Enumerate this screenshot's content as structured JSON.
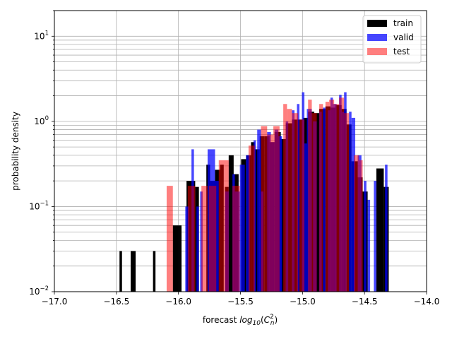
{
  "chart_data": {
    "type": "bar",
    "subtype": "histogram",
    "title": "",
    "xlabel": "forecast log10(C_n^2)",
    "xlabel_parts": {
      "prefix": "forecast ",
      "func": "log",
      "sub": "10",
      "open": "(",
      "var": "C",
      "sup": "2",
      "varsub": "n",
      "close": ")"
    },
    "ylabel": "probability density",
    "xlim": [
      -17.0,
      -14.0
    ],
    "ylim": [
      0.01,
      20
    ],
    "yscale": "log",
    "grid": true,
    "legend_position": "top-right",
    "xticks": [
      -17.0,
      -16.5,
      -16.0,
      -15.5,
      -15.0,
      -14.5,
      -14.0
    ],
    "xtick_labels": [
      "−17.0",
      "−16.5",
      "−16.0",
      "−15.5",
      "−15.0",
      "−14.5",
      "−14.0"
    ],
    "yticks": [
      0.01,
      0.1,
      1,
      10
    ],
    "ytick_labels": [
      {
        "base": "10",
        "exp": "−2"
      },
      {
        "base": "10",
        "exp": "−1"
      },
      {
        "base": "10",
        "exp": "0"
      },
      {
        "base": "10",
        "exp": "1"
      }
    ],
    "series": [
      {
        "name": "train",
        "color": "#000000",
        "opacity": 1.0,
        "bars": [
          [
            -16.475,
            -16.455,
            0.03
          ],
          [
            -16.385,
            -16.345,
            0.03
          ],
          [
            -16.205,
            -16.185,
            0.03
          ],
          [
            -16.045,
            -15.995,
            0.06
          ],
          [
            -15.995,
            -15.975,
            0.06
          ],
          [
            -15.935,
            -15.865,
            0.2
          ],
          [
            -15.865,
            -15.835,
            0.17
          ],
          [
            -15.775,
            -15.745,
            0.31
          ],
          [
            -15.745,
            -15.705,
            0.2
          ],
          [
            -15.705,
            -15.665,
            0.27
          ],
          [
            -15.665,
            -15.635,
            0.31
          ],
          [
            -15.625,
            -15.595,
            0.17
          ],
          [
            -15.595,
            -15.555,
            0.4
          ],
          [
            -15.555,
            -15.515,
            0.24
          ],
          [
            -15.495,
            -15.455,
            0.36
          ],
          [
            -15.455,
            -15.415,
            0.4
          ],
          [
            -15.415,
            -15.385,
            0.57
          ],
          [
            -15.385,
            -15.345,
            0.47
          ],
          [
            -15.345,
            -15.305,
            0.67
          ],
          [
            -15.305,
            -15.265,
            0.67
          ],
          [
            -15.265,
            -15.225,
            0.57
          ],
          [
            -15.225,
            -15.175,
            0.75
          ],
          [
            -15.175,
            -15.135,
            0.62
          ],
          [
            -15.135,
            -15.085,
            0.95
          ],
          [
            -15.085,
            -15.045,
            1.05
          ],
          [
            -15.045,
            -14.995,
            1.05
          ],
          [
            -14.995,
            -14.955,
            1.1
          ],
          [
            -14.955,
            -14.905,
            1.3
          ],
          [
            -14.905,
            -14.865,
            1.25
          ],
          [
            -14.865,
            -14.815,
            1.4
          ],
          [
            -14.815,
            -14.775,
            1.5
          ],
          [
            -14.775,
            -14.735,
            1.45
          ],
          [
            -14.735,
            -14.685,
            1.55
          ],
          [
            -14.685,
            -14.645,
            1.4
          ],
          [
            -14.645,
            -14.605,
            0.92
          ],
          [
            -14.605,
            -14.555,
            0.34
          ],
          [
            -14.555,
            -14.515,
            0.22
          ],
          [
            -14.515,
            -14.475,
            0.15
          ],
          [
            -14.405,
            -14.345,
            0.28
          ],
          [
            -14.345,
            -14.305,
            0.17
          ]
        ]
      },
      {
        "name": "valid",
        "color": "#0000ff",
        "opacity": 0.72,
        "bars": [
          [
            -15.945,
            -15.915,
            0.1
          ],
          [
            -15.895,
            -15.875,
            0.47
          ],
          [
            -15.855,
            -15.835,
            0.1
          ],
          [
            -15.825,
            -15.805,
            0.15
          ],
          [
            -15.765,
            -15.705,
            0.47
          ],
          [
            -15.705,
            -15.675,
            0.2
          ],
          [
            -15.625,
            -15.595,
            0.15
          ],
          [
            -15.565,
            -15.545,
            0.24
          ],
          [
            -15.545,
            -15.505,
            0.15
          ],
          [
            -15.505,
            -15.465,
            0.31
          ],
          [
            -15.455,
            -15.425,
            0.4
          ],
          [
            -15.395,
            -15.375,
            0.6
          ],
          [
            -15.365,
            -15.335,
            0.8
          ],
          [
            -15.335,
            -15.315,
            0.15
          ],
          [
            -15.285,
            -15.255,
            0.75
          ],
          [
            -15.255,
            -15.225,
            0.57
          ],
          [
            -15.225,
            -15.195,
            0.8
          ],
          [
            -15.195,
            -15.165,
            0.67
          ],
          [
            -15.135,
            -15.115,
            1.0
          ],
          [
            -15.085,
            -15.065,
            1.35
          ],
          [
            -15.045,
            -15.025,
            1.6
          ],
          [
            -15.005,
            -14.985,
            2.2
          ],
          [
            -14.985,
            -14.965,
            0.55
          ],
          [
            -14.965,
            -14.925,
            1.4
          ],
          [
            -14.915,
            -14.885,
            1.0
          ],
          [
            -14.865,
            -14.845,
            1.3
          ],
          [
            -14.835,
            -14.815,
            1.45
          ],
          [
            -14.795,
            -14.775,
            1.35
          ],
          [
            -14.775,
            -14.755,
            1.9
          ],
          [
            -14.755,
            -14.725,
            1.6
          ],
          [
            -14.705,
            -14.685,
            2.05
          ],
          [
            -14.685,
            -14.665,
            1.3
          ],
          [
            -14.665,
            -14.645,
            2.2
          ],
          [
            -14.625,
            -14.605,
            1.3
          ],
          [
            -14.605,
            -14.575,
            1.1
          ],
          [
            -14.555,
            -14.525,
            0.4
          ],
          [
            -14.505,
            -14.485,
            0.2
          ],
          [
            -14.475,
            -14.455,
            0.12
          ],
          [
            -14.425,
            -14.405,
            0.2
          ],
          [
            -14.335,
            -14.315,
            0.31
          ]
        ]
      },
      {
        "name": "test",
        "color": "#ff0000",
        "opacity": 0.5,
        "bars": [
          [
            -16.095,
            -16.045,
            0.175
          ],
          [
            -15.925,
            -15.865,
            0.175
          ],
          [
            -15.815,
            -15.765,
            0.175
          ],
          [
            -15.755,
            -15.695,
            0.175
          ],
          [
            -15.675,
            -15.595,
            0.35
          ],
          [
            -15.565,
            -15.505,
            0.175
          ],
          [
            -15.435,
            -15.385,
            0.52
          ],
          [
            -15.335,
            -15.285,
            0.88
          ],
          [
            -15.285,
            -15.235,
            0.7
          ],
          [
            -15.235,
            -15.185,
            0.88
          ],
          [
            -15.155,
            -15.125,
            1.6
          ],
          [
            -15.125,
            -15.085,
            1.4
          ],
          [
            -15.085,
            -15.035,
            1.25
          ],
          [
            -15.025,
            -14.985,
            1.05
          ],
          [
            -14.955,
            -14.925,
            1.8
          ],
          [
            -14.925,
            -14.885,
            1.25
          ],
          [
            -14.865,
            -14.835,
            1.6
          ],
          [
            -14.815,
            -14.785,
            1.7
          ],
          [
            -14.785,
            -14.745,
            1.8
          ],
          [
            -14.745,
            -14.705,
            1.6
          ],
          [
            -14.705,
            -14.665,
            1.9
          ],
          [
            -14.665,
            -14.625,
            1.25
          ],
          [
            -14.585,
            -14.545,
            0.4
          ],
          [
            -14.545,
            -14.515,
            0.35
          ]
        ]
      }
    ]
  }
}
